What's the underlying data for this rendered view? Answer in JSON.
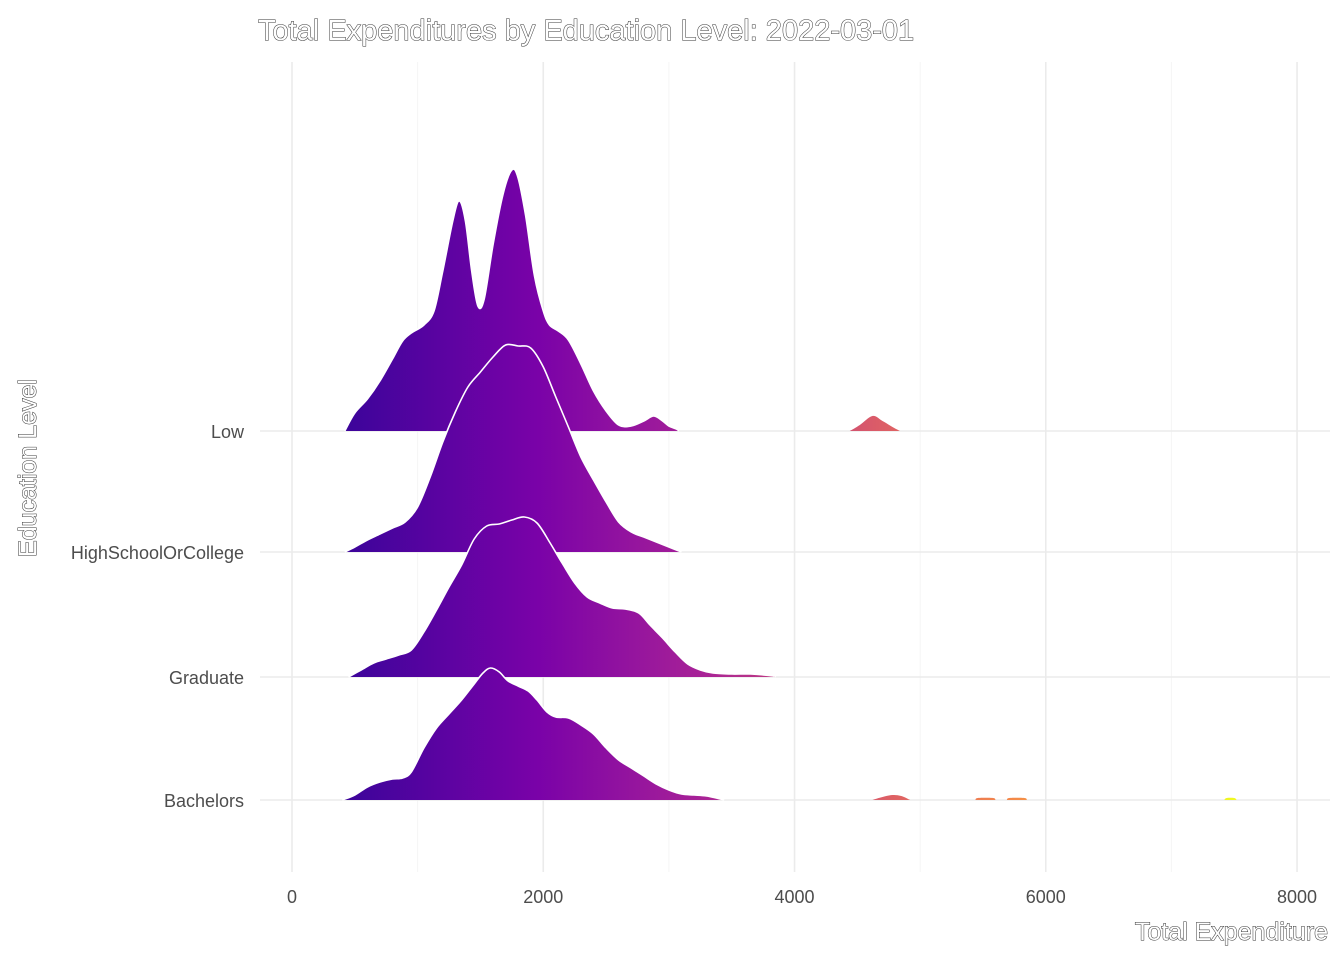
{
  "chart_data": {
    "type": "ridgeline",
    "title": "Total Expenditures by Education Level: 2022-03-01",
    "xlabel": "Total Expenditure",
    "ylabel": "Education Level",
    "xlim": [
      -300,
      8200
    ],
    "x_ticks": [
      0,
      2000,
      4000,
      6000,
      8000
    ],
    "grid": true,
    "legend": "none",
    "fill_gradient": [
      "#3b049a",
      "#7a02a8",
      "#a72197",
      "#db5c68",
      "#f48849",
      "#f0f921"
    ],
    "categories": [
      "Bachelors",
      "Graduate",
      "HighSchoolOrCollege",
      "Low"
    ],
    "series": [
      {
        "name": "Bachelors",
        "points": [
          [
            400,
            0
          ],
          [
            500,
            0.05
          ],
          [
            600,
            0.13
          ],
          [
            700,
            0.18
          ],
          [
            800,
            0.21
          ],
          [
            880,
            0.22
          ],
          [
            950,
            0.28
          ],
          [
            1050,
            0.52
          ],
          [
            1150,
            0.72
          ],
          [
            1250,
            0.86
          ],
          [
            1350,
            1.0
          ],
          [
            1450,
            1.16
          ],
          [
            1520,
            1.27
          ],
          [
            1580,
            1.32
          ],
          [
            1650,
            1.28
          ],
          [
            1720,
            1.19
          ],
          [
            1800,
            1.14
          ],
          [
            1880,
            1.09
          ],
          [
            1950,
            1.0
          ],
          [
            2030,
            0.88
          ],
          [
            2100,
            0.83
          ],
          [
            2200,
            0.82
          ],
          [
            2300,
            0.75
          ],
          [
            2400,
            0.66
          ],
          [
            2500,
            0.52
          ],
          [
            2600,
            0.4
          ],
          [
            2700,
            0.32
          ],
          [
            2800,
            0.24
          ],
          [
            2900,
            0.16
          ],
          [
            3000,
            0.1
          ],
          [
            3100,
            0.06
          ],
          [
            3200,
            0.05
          ],
          [
            3300,
            0.04
          ],
          [
            3440,
            0
          ]
        ],
        "bumps": [
          [
            [
              4620,
              0
            ],
            [
              4700,
              0.03
            ],
            [
              4780,
              0.05
            ],
            [
              4850,
              0.04
            ],
            [
              4920,
              0
            ]
          ],
          [
            [
              5440,
              0
            ],
            [
              5460,
              0.02
            ],
            [
              5580,
              0.02
            ],
            [
              5600,
              0
            ]
          ],
          [
            [
              5690,
              0
            ],
            [
              5710,
              0.02
            ],
            [
              5830,
              0.02
            ],
            [
              5850,
              0
            ]
          ],
          [
            [
              7420,
              0
            ],
            [
              7440,
              0.02
            ],
            [
              7500,
              0.02
            ],
            [
              7520,
              0
            ]
          ]
        ]
      },
      {
        "name": "Graduate",
        "points": [
          [
            450,
            0
          ],
          [
            550,
            0.07
          ],
          [
            650,
            0.14
          ],
          [
            750,
            0.18
          ],
          [
            850,
            0.22
          ],
          [
            950,
            0.27
          ],
          [
            1050,
            0.45
          ],
          [
            1150,
            0.67
          ],
          [
            1250,
            0.9
          ],
          [
            1350,
            1.12
          ],
          [
            1450,
            1.38
          ],
          [
            1550,
            1.51
          ],
          [
            1650,
            1.53
          ],
          [
            1750,
            1.57
          ],
          [
            1850,
            1.6
          ],
          [
            1950,
            1.54
          ],
          [
            2050,
            1.35
          ],
          [
            2150,
            1.14
          ],
          [
            2250,
            0.94
          ],
          [
            2350,
            0.8
          ],
          [
            2450,
            0.74
          ],
          [
            2550,
            0.69
          ],
          [
            2650,
            0.68
          ],
          [
            2760,
            0.64
          ],
          [
            2850,
            0.52
          ],
          [
            2950,
            0.39
          ],
          [
            3050,
            0.25
          ],
          [
            3150,
            0.13
          ],
          [
            3250,
            0.07
          ],
          [
            3350,
            0.04
          ],
          [
            3500,
            0.03
          ],
          [
            3650,
            0.03
          ],
          [
            3830,
            0.01
          ],
          [
            3840,
            0
          ]
        ]
      },
      {
        "name": "HighSchoolOrCollege",
        "points": [
          [
            420,
            0
          ],
          [
            500,
            0.05
          ],
          [
            600,
            0.12
          ],
          [
            700,
            0.18
          ],
          [
            800,
            0.24
          ],
          [
            900,
            0.3
          ],
          [
            1000,
            0.45
          ],
          [
            1100,
            0.75
          ],
          [
            1200,
            1.1
          ],
          [
            1300,
            1.4
          ],
          [
            1400,
            1.65
          ],
          [
            1500,
            1.8
          ],
          [
            1600,
            1.95
          ],
          [
            1700,
            2.07
          ],
          [
            1800,
            2.06
          ],
          [
            1900,
            2.04
          ],
          [
            2000,
            1.85
          ],
          [
            2100,
            1.55
          ],
          [
            2200,
            1.25
          ],
          [
            2300,
            0.95
          ],
          [
            2400,
            0.72
          ],
          [
            2500,
            0.5
          ],
          [
            2600,
            0.3
          ],
          [
            2700,
            0.2
          ],
          [
            2800,
            0.15
          ],
          [
            2900,
            0.1
          ],
          [
            3000,
            0.05
          ],
          [
            3100,
            0
          ]
        ]
      },
      {
        "name": "Low",
        "points": [
          [
            420,
            0
          ],
          [
            500,
            0.18
          ],
          [
            600,
            0.32
          ],
          [
            700,
            0.5
          ],
          [
            800,
            0.72
          ],
          [
            880,
            0.9
          ],
          [
            950,
            0.98
          ],
          [
            1050,
            1.06
          ],
          [
            1130,
            1.2
          ],
          [
            1200,
            1.6
          ],
          [
            1280,
            2.1
          ],
          [
            1330,
            2.3
          ],
          [
            1380,
            2.1
          ],
          [
            1430,
            1.6
          ],
          [
            1480,
            1.25
          ],
          [
            1530,
            1.32
          ],
          [
            1600,
            1.86
          ],
          [
            1680,
            2.37
          ],
          [
            1750,
            2.61
          ],
          [
            1800,
            2.53
          ],
          [
            1860,
            2.15
          ],
          [
            1930,
            1.55
          ],
          [
            2000,
            1.2
          ],
          [
            2050,
            1.06
          ],
          [
            2120,
            1.0
          ],
          [
            2200,
            0.91
          ],
          [
            2300,
            0.67
          ],
          [
            2400,
            0.4
          ],
          [
            2500,
            0.2
          ],
          [
            2600,
            0.06
          ],
          [
            2700,
            0.05
          ],
          [
            2800,
            0.1
          ],
          [
            2880,
            0.15
          ],
          [
            2950,
            0.1
          ],
          [
            3000,
            0.05
          ],
          [
            3060,
            0.02
          ],
          [
            3080,
            0
          ]
        ],
        "bumps": [
          [
            [
              4440,
              0
            ],
            [
              4520,
              0.06
            ],
            [
              4620,
              0.15
            ],
            [
              4700,
              0.1
            ],
            [
              4780,
              0.04
            ],
            [
              4840,
              0
            ]
          ]
        ]
      }
    ]
  }
}
